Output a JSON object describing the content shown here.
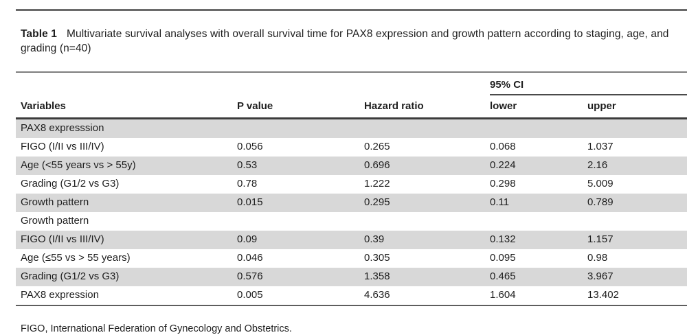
{
  "title": {
    "label": "Table 1",
    "caption": "Multivariate survival analyses with overall survival time for PAX8 expression and growth pattern according to staging, age, and grading (n=40)"
  },
  "table": {
    "span_header": "95% CI",
    "columns": {
      "variables": "Variables",
      "p_value": "P value",
      "hazard_ratio": "Hazard ratio",
      "ci_lower": "lower",
      "ci_upper": "upper"
    },
    "rows": [
      {
        "type": "section",
        "label": "PAX8 expresssion",
        "shaded": true
      },
      {
        "type": "data",
        "label": "FIGO (I/II vs III/IV)",
        "p_value": "0.056",
        "hazard_ratio": "0.265",
        "ci_lower": "0.068",
        "ci_upper": "1.037",
        "shaded": false
      },
      {
        "type": "data",
        "label": "Age (<55 years vs > 55y)",
        "p_value": "0.53",
        "hazard_ratio": "0.696",
        "ci_lower": "0.224",
        "ci_upper": "2.16",
        "shaded": true
      },
      {
        "type": "data",
        "label": "Grading (G1/2 vs G3)",
        "p_value": "0.78",
        "hazard_ratio": "1.222",
        "ci_lower": "0.298",
        "ci_upper": "5.009",
        "shaded": false
      },
      {
        "type": "data",
        "label": "Growth pattern",
        "p_value": "0.015",
        "hazard_ratio": "0.295",
        "ci_lower": "0.11",
        "ci_upper": "0.789",
        "shaded": true
      },
      {
        "type": "section",
        "label": "Growth pattern",
        "shaded": false
      },
      {
        "type": "data",
        "label": "FIGO (I/II vs III/IV)",
        "p_value": "0.09",
        "hazard_ratio": "0.39",
        "ci_lower": "0.132",
        "ci_upper": "1.157",
        "shaded": true
      },
      {
        "type": "data",
        "label": "Age (≤55 vs > 55 years)",
        "p_value": "0.046",
        "hazard_ratio": "0.305",
        "ci_lower": "0.095",
        "ci_upper": "0.98",
        "shaded": false
      },
      {
        "type": "data",
        "label": "Grading (G1/2 vs G3)",
        "p_value": "0.576",
        "hazard_ratio": "1.358",
        "ci_lower": "0.465",
        "ci_upper": "3.967",
        "shaded": true
      },
      {
        "type": "data",
        "label": "PAX8 expression",
        "p_value": "0.005",
        "hazard_ratio": "4.636",
        "ci_lower": "1.604",
        "ci_upper": "13.402",
        "shaded": false
      }
    ]
  },
  "footnote": "FIGO, International Federation of Gynecology and Obstetrics.",
  "colors": {
    "row_shade": "#d8d8d8",
    "rule_dark": "#3c3c3c",
    "rule_medium": "#6a6a6a",
    "text": "#1e1e1e",
    "background": "#ffffff"
  }
}
